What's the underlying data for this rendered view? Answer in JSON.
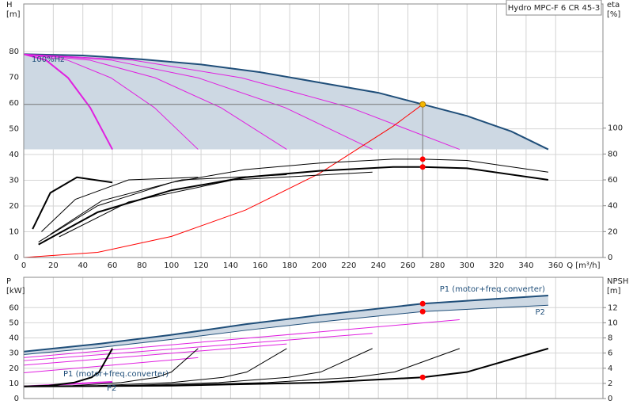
{
  "chart_data": [
    {
      "type": "line",
      "ylabel": "H",
      "ylabel_unit": "[m]",
      "y2label": "eta",
      "y2label_unit": "[%]",
      "xlabel": "Q [m³/h]",
      "box_label": "Hydro MPC-F 6 CR 45-3",
      "notes": [
        "100%Hz"
      ],
      "xlim": [
        0,
        392
      ],
      "xticks": [
        0,
        20,
        40,
        60,
        80,
        100,
        120,
        140,
        160,
        180,
        200,
        220,
        240,
        260,
        280,
        300,
        320,
        340,
        360
      ],
      "ylim": [
        0,
        98.5
      ],
      "yticks": [
        0,
        10,
        20,
        30,
        40,
        50,
        60,
        70,
        80
      ],
      "y2lim": [
        0,
        196
      ],
      "y2ticks": [
        0,
        20,
        40,
        60,
        80,
        100
      ],
      "grid": true,
      "xtick_labels": true,
      "series": [
        {
          "color": "#1f4e79",
          "style": "thick",
          "fill": "#cdd8e3",
          "x": [
            0,
            40,
            80,
            120,
            160,
            200,
            240,
            270,
            300,
            330,
            355
          ],
          "values": [
            79,
            78.5,
            77,
            75,
            72,
            68,
            64,
            59.5,
            55,
            49,
            42
          ]
        },
        {
          "color": "#e020e0",
          "style": "thick",
          "x": [
            0,
            15,
            30,
            45,
            60
          ],
          "values": [
            79,
            76.7,
            69.8,
            58.2,
            42
          ]
        },
        {
          "color": "#e020e0",
          "style": "thin",
          "x": [
            0,
            29.5,
            59,
            88.5,
            118
          ],
          "values": [
            79,
            76.7,
            69.8,
            58.2,
            42
          ]
        },
        {
          "color": "#e020e0",
          "style": "thin",
          "x": [
            0,
            44.5,
            89,
            133.5,
            178
          ],
          "values": [
            79,
            76.7,
            69.8,
            58.2,
            42
          ]
        },
        {
          "color": "#e020e0",
          "style": "thin",
          "x": [
            0,
            59,
            118,
            177,
            236
          ],
          "values": [
            79,
            76.7,
            69.8,
            58.2,
            42
          ]
        },
        {
          "color": "#e020e0",
          "style": "thin",
          "x": [
            0,
            73.75,
            147.5,
            221.25,
            295
          ],
          "values": [
            79,
            76.7,
            69.8,
            58.2,
            42
          ]
        },
        {
          "color": "#ff0000",
          "style": "thin",
          "x": [
            0,
            50,
            100,
            150,
            200,
            250,
            270
          ],
          "values": [
            0,
            2,
            8.2,
            18.4,
            32.6,
            51,
            59.5
          ]
        },
        {
          "color": "#000000",
          "style": "thick",
          "axis": "y2",
          "x": [
            10,
            50,
            100,
            150,
            200,
            250,
            270,
            300,
            355
          ],
          "values": [
            10,
            35,
            52,
            62,
            67,
            70,
            70,
            69,
            60
          ]
        },
        {
          "color": "#000000",
          "style": "thin",
          "axis": "y2",
          "x": [
            10,
            50,
            100,
            150,
            200,
            250,
            270,
            300,
            355
          ],
          "values": [
            12,
            40,
            58,
            68,
            73,
            76,
            76,
            75,
            66
          ]
        },
        {
          "color": "#000000",
          "style": "thick",
          "axis": "y2",
          "x": [
            6,
            18,
            36,
            60
          ],
          "values": [
            22,
            50,
            62,
            58
          ]
        },
        {
          "color": "#000000",
          "style": "thin",
          "axis": "y2",
          "x": [
            12,
            35,
            71,
            118
          ],
          "values": [
            20,
            45,
            60,
            62
          ]
        },
        {
          "color": "#000000",
          "style": "thin",
          "axis": "y2",
          "x": [
            18,
            53,
            107,
            178
          ],
          "values": [
            18,
            44,
            60,
            64
          ]
        },
        {
          "color": "#000000",
          "style": "thin",
          "axis": "y2",
          "x": [
            24,
            71,
            142,
            236
          ],
          "values": [
            16,
            43,
            60,
            66
          ]
        },
        {
          "color": "#f5b800",
          "marker": true,
          "guides": true,
          "x": [
            270
          ],
          "values": [
            59.5
          ]
        },
        {
          "color": "#ff0000",
          "marker": true,
          "axis": "y2",
          "x": [
            270,
            270
          ],
          "values": [
            76,
            70
          ]
        }
      ]
    },
    {
      "type": "line",
      "ylabel": "P",
      "ylabel_unit": "[kW]",
      "y2label": "NPSH",
      "y2label_unit": "[m]",
      "notes": [
        "P1 (motor+freq.converter)",
        "P2"
      ],
      "xlim": [
        0,
        392
      ],
      "xticks": [
        0,
        20,
        40,
        60,
        80,
        100,
        120,
        140,
        160,
        180,
        200,
        220,
        240,
        260,
        280,
        300,
        320,
        340,
        360
      ],
      "ylim": [
        0,
        80
      ],
      "yticks": [
        0,
        10,
        20,
        30,
        40,
        50,
        60
      ],
      "y2lim": [
        0,
        16
      ],
      "y2ticks": [
        0,
        2,
        4,
        6,
        8,
        10,
        12
      ],
      "grid": true,
      "xtick_labels": false,
      "series": [
        {
          "name": "P1 (motor+freq.converter)",
          "label_pos": "above",
          "band": "#cdd8e3",
          "color": "#1f4e79",
          "style": "thick",
          "x": [
            0,
            50,
            100,
            150,
            200,
            270,
            355
          ],
          "values": [
            31,
            36,
            42,
            49,
            55,
            62.6,
            68
          ]
        },
        {
          "name": "P2",
          "label_pos": "below",
          "color": "#1f4e79",
          "style": "thin",
          "x": [
            0,
            50,
            100,
            150,
            200,
            270,
            355
          ],
          "values": [
            29,
            33.5,
            39,
            45,
            50.5,
            57.4,
            61.6
          ]
        },
        {
          "color": "#e020e0",
          "style": "thick",
          "x": [
            0,
            60
          ],
          "values": [
            8,
            11
          ]
        },
        {
          "color": "#e020e0",
          "style": "thin",
          "x": [
            0,
            118
          ],
          "values": [
            17,
            27
          ]
        },
        {
          "color": "#e020e0",
          "style": "thin",
          "x": [
            0,
            178
          ],
          "values": [
            22,
            36
          ]
        },
        {
          "color": "#e020e0",
          "style": "thin",
          "x": [
            0,
            236
          ],
          "values": [
            25,
            43
          ]
        },
        {
          "color": "#e020e0",
          "style": "thin",
          "x": [
            0,
            295
          ],
          "values": [
            27,
            52
          ]
        },
        {
          "color": "#000000",
          "style": "thick",
          "axis": "y2",
          "x": [
            0,
            100,
            200,
            270,
            300,
            355
          ],
          "values": [
            1.6,
            1.7,
            2.1,
            2.8,
            3.5,
            6.6
          ]
        },
        {
          "color": "#000000",
          "style": "thick",
          "axis": "y2",
          "x": [
            0,
            17,
            34,
            46,
            51,
            60
          ],
          "values": [
            1.6,
            1.7,
            2.1,
            2.8,
            3.5,
            6.6
          ]
        },
        {
          "color": "#000000",
          "style": "thin",
          "axis": "y2",
          "x": [
            0,
            33,
            66,
            90,
            100,
            118
          ],
          "values": [
            1.6,
            1.7,
            2.1,
            2.8,
            3.5,
            6.6
          ]
        },
        {
          "color": "#000000",
          "style": "thin",
          "axis": "y2",
          "x": [
            0,
            50,
            100,
            135,
            151,
            178
          ],
          "values": [
            1.6,
            1.7,
            2.1,
            2.8,
            3.5,
            6.6
          ]
        },
        {
          "color": "#000000",
          "style": "thin",
          "axis": "y2",
          "x": [
            0,
            66,
            132,
            179,
            201,
            236
          ],
          "values": [
            1.6,
            1.7,
            2.1,
            2.8,
            3.5,
            6.6
          ]
        },
        {
          "color": "#000000",
          "style": "thin",
          "axis": "y2",
          "x": [
            0,
            83,
            165,
            224,
            251,
            295
          ],
          "values": [
            1.6,
            1.7,
            2.1,
            2.8,
            3.5,
            6.6
          ]
        },
        {
          "color": "#ff0000",
          "marker": true,
          "x": [
            270,
            270
          ],
          "values": [
            62.6,
            57.4
          ]
        },
        {
          "color": "#ff0000",
          "marker": true,
          "axis": "y2",
          "x": [
            270
          ],
          "values": [
            2.8
          ]
        }
      ]
    }
  ]
}
